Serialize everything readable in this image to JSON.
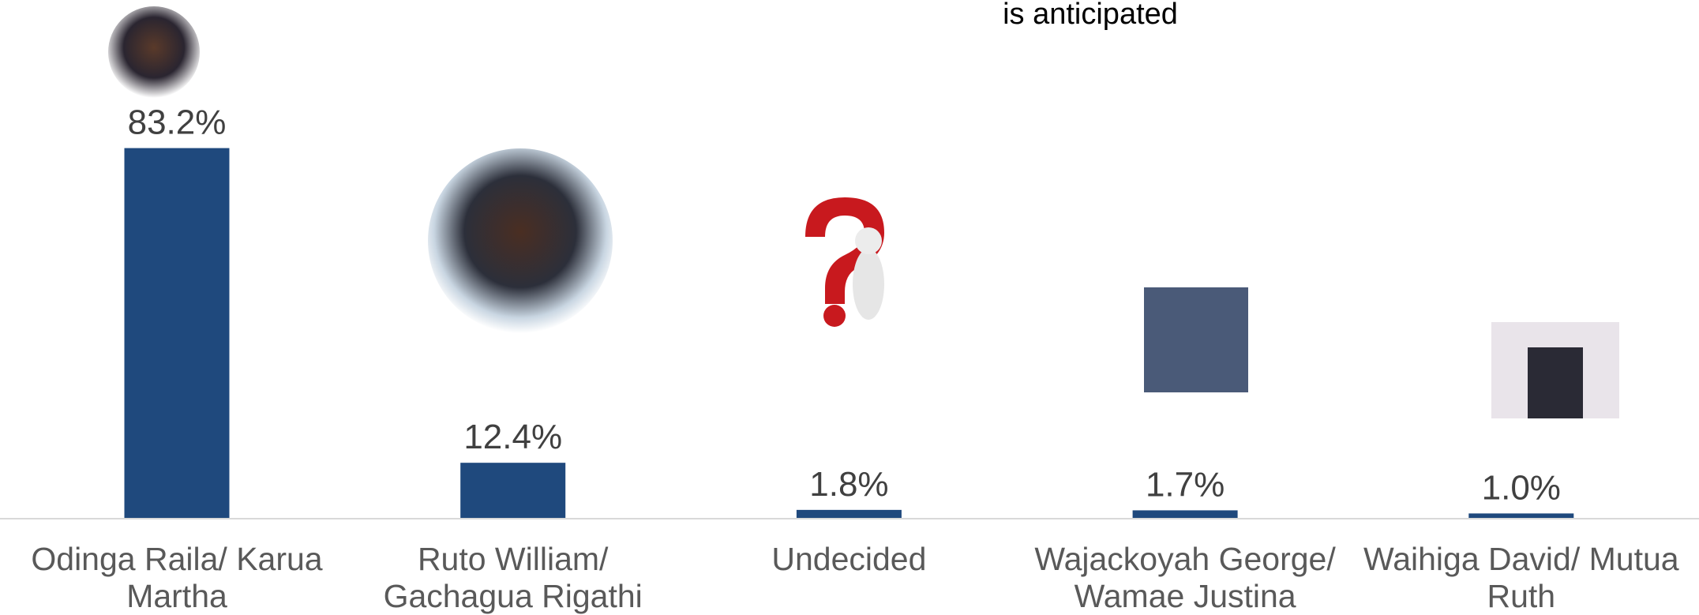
{
  "chart_data": {
    "type": "bar",
    "title": "is  anticipated",
    "categories": [
      "Odinga Raila/ Karua Martha",
      "Ruto William/ Gachagua Rigathi",
      "Undecided",
      "Wajackoyah George/ Wamae Justina",
      "Waihiga David/ Mutua Ruth"
    ],
    "values": [
      83.2,
      12.4,
      1.8,
      1.7,
      1.0
    ],
    "value_labels": [
      "83.2%",
      "12.4%",
      "1.8%",
      "1.7%",
      "1.0%"
    ],
    "color": "#1f497d"
  }
}
